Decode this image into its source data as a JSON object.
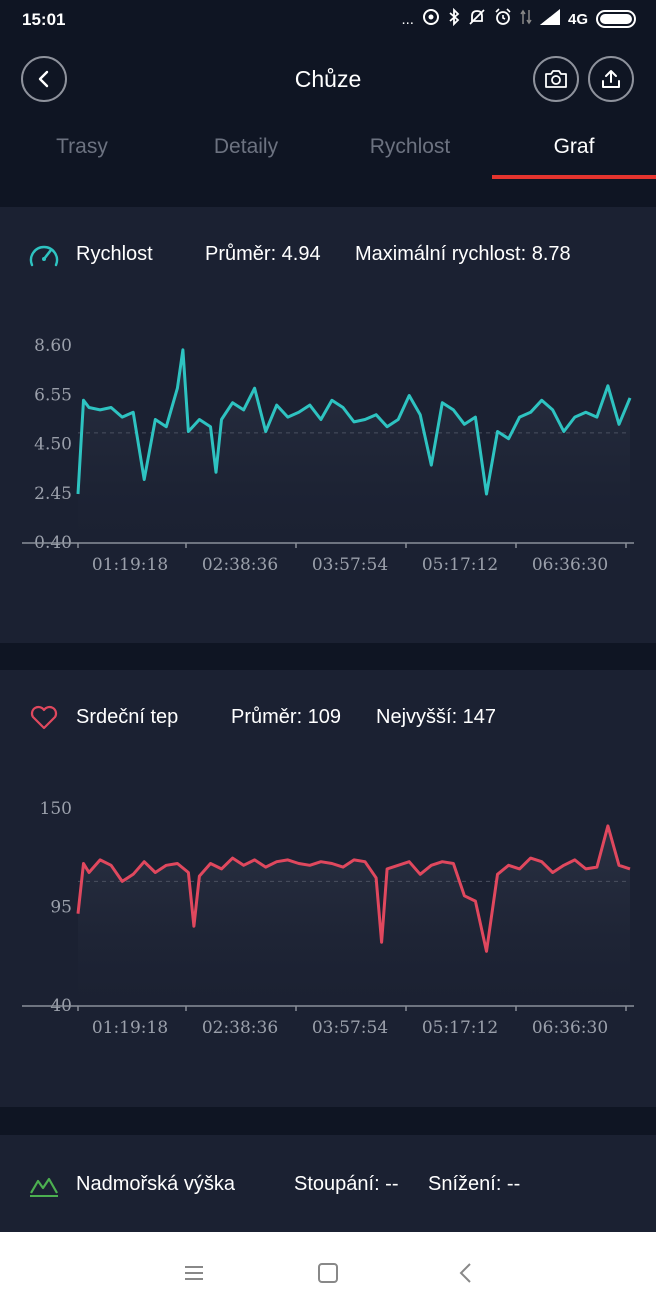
{
  "status_bar": {
    "time": "15:01",
    "dots": "...",
    "network": "4G",
    "icons": [
      "nfc-icon",
      "bluetooth-icon",
      "mute-icon",
      "alarm-icon",
      "data-arrows-icon",
      "signal-icon",
      "battery-icon"
    ]
  },
  "header": {
    "title": "Chůze",
    "back_icon": "chevron-left-icon",
    "camera_icon": "camera-icon",
    "share_icon": "upload-icon"
  },
  "tabs": [
    {
      "label": "Trasy",
      "active": false
    },
    {
      "label": "Detaily",
      "active": false
    },
    {
      "label": "Rychlost",
      "active": false
    },
    {
      "label": "Graf",
      "active": true
    }
  ],
  "speed_card": {
    "label": "Rychlost",
    "average": "Průměr: 4.94",
    "max": "Maximální rychlost: 8.78",
    "icon": "speedometer-icon",
    "line_color": "#2ec3c1"
  },
  "heart_card": {
    "label": "Srdeční tep",
    "average": "Průměr: 109",
    "max": "Nejvyšší: 147",
    "icon": "heart-icon",
    "line_color": "#e0485e"
  },
  "altitude_card": {
    "label": "Nadmořská výška",
    "ascent": "Stoupání: --",
    "descent": "Snížení: --",
    "icon": "mountain-icon",
    "icon_color": "#4caf50"
  },
  "chart_data": [
    {
      "type": "line",
      "series_name": "Rychlost",
      "y_ticks": [
        "8.60",
        "6.55",
        "4.50",
        "2.45",
        "0.40"
      ],
      "x_ticks": [
        "01:19:18",
        "02:38:36",
        "03:57:54",
        "05:17:12",
        "06:36:30"
      ],
      "ylim": [
        0.4,
        8.6
      ],
      "average": 4.94,
      "x": [
        0,
        0.01,
        0.02,
        0.04,
        0.06,
        0.08,
        0.1,
        0.12,
        0.14,
        0.16,
        0.18,
        0.19,
        0.2,
        0.22,
        0.24,
        0.25,
        0.26,
        0.28,
        0.3,
        0.32,
        0.34,
        0.36,
        0.38,
        0.4,
        0.42,
        0.44,
        0.46,
        0.48,
        0.5,
        0.52,
        0.54,
        0.56,
        0.58,
        0.6,
        0.62,
        0.64,
        0.66,
        0.68,
        0.7,
        0.72,
        0.74,
        0.76,
        0.78,
        0.8,
        0.82,
        0.84,
        0.86,
        0.88,
        0.9,
        0.92,
        0.94,
        0.96,
        0.98,
        1.0
      ],
      "values": [
        2.4,
        6.3,
        6.0,
        5.9,
        6.0,
        5.6,
        5.8,
        3.0,
        5.5,
        5.2,
        6.8,
        8.4,
        5.0,
        5.5,
        5.2,
        3.3,
        5.5,
        6.2,
        5.9,
        6.8,
        5.0,
        6.1,
        5.6,
        5.8,
        6.1,
        5.5,
        6.3,
        6.0,
        5.4,
        5.5,
        5.7,
        5.2,
        5.5,
        6.5,
        5.7,
        3.6,
        6.2,
        5.9,
        5.3,
        5.6,
        2.4,
        5.0,
        4.7,
        5.6,
        5.8,
        6.3,
        5.9,
        5.0,
        5.6,
        5.8,
        5.6,
        6.9,
        5.3,
        6.4
      ]
    },
    {
      "type": "line",
      "series_name": "Srdeční tep",
      "y_ticks": [
        "150",
        "95",
        "40"
      ],
      "x_ticks": [
        "01:19:18",
        "02:38:36",
        "03:57:54",
        "05:17:12",
        "06:36:30"
      ],
      "ylim": [
        40,
        150
      ],
      "average": 109,
      "x": [
        0,
        0.01,
        0.02,
        0.04,
        0.06,
        0.08,
        0.1,
        0.12,
        0.14,
        0.16,
        0.18,
        0.2,
        0.21,
        0.22,
        0.24,
        0.26,
        0.28,
        0.3,
        0.32,
        0.34,
        0.36,
        0.38,
        0.4,
        0.42,
        0.44,
        0.46,
        0.48,
        0.5,
        0.52,
        0.54,
        0.55,
        0.56,
        0.58,
        0.6,
        0.62,
        0.64,
        0.66,
        0.68,
        0.7,
        0.72,
        0.74,
        0.76,
        0.78,
        0.8,
        0.82,
        0.84,
        0.86,
        0.88,
        0.9,
        0.92,
        0.94,
        0.96,
        0.98,
        1.0
      ],
      "values": [
        91,
        119,
        114,
        121,
        118,
        109,
        113,
        120,
        114,
        118,
        119,
        114,
        84,
        112,
        119,
        116,
        122,
        118,
        121,
        117,
        120,
        121,
        119,
        118,
        120,
        119,
        117,
        121,
        120,
        111,
        75,
        116,
        118,
        120,
        113,
        118,
        120,
        119,
        101,
        98,
        70,
        113,
        118,
        116,
        122,
        120,
        114,
        118,
        121,
        116,
        117,
        140,
        118,
        116
      ]
    }
  ],
  "nav": {
    "menu_icon": "menu-icon",
    "home_icon": "square-home-icon",
    "back_icon": "triangle-back-icon"
  }
}
